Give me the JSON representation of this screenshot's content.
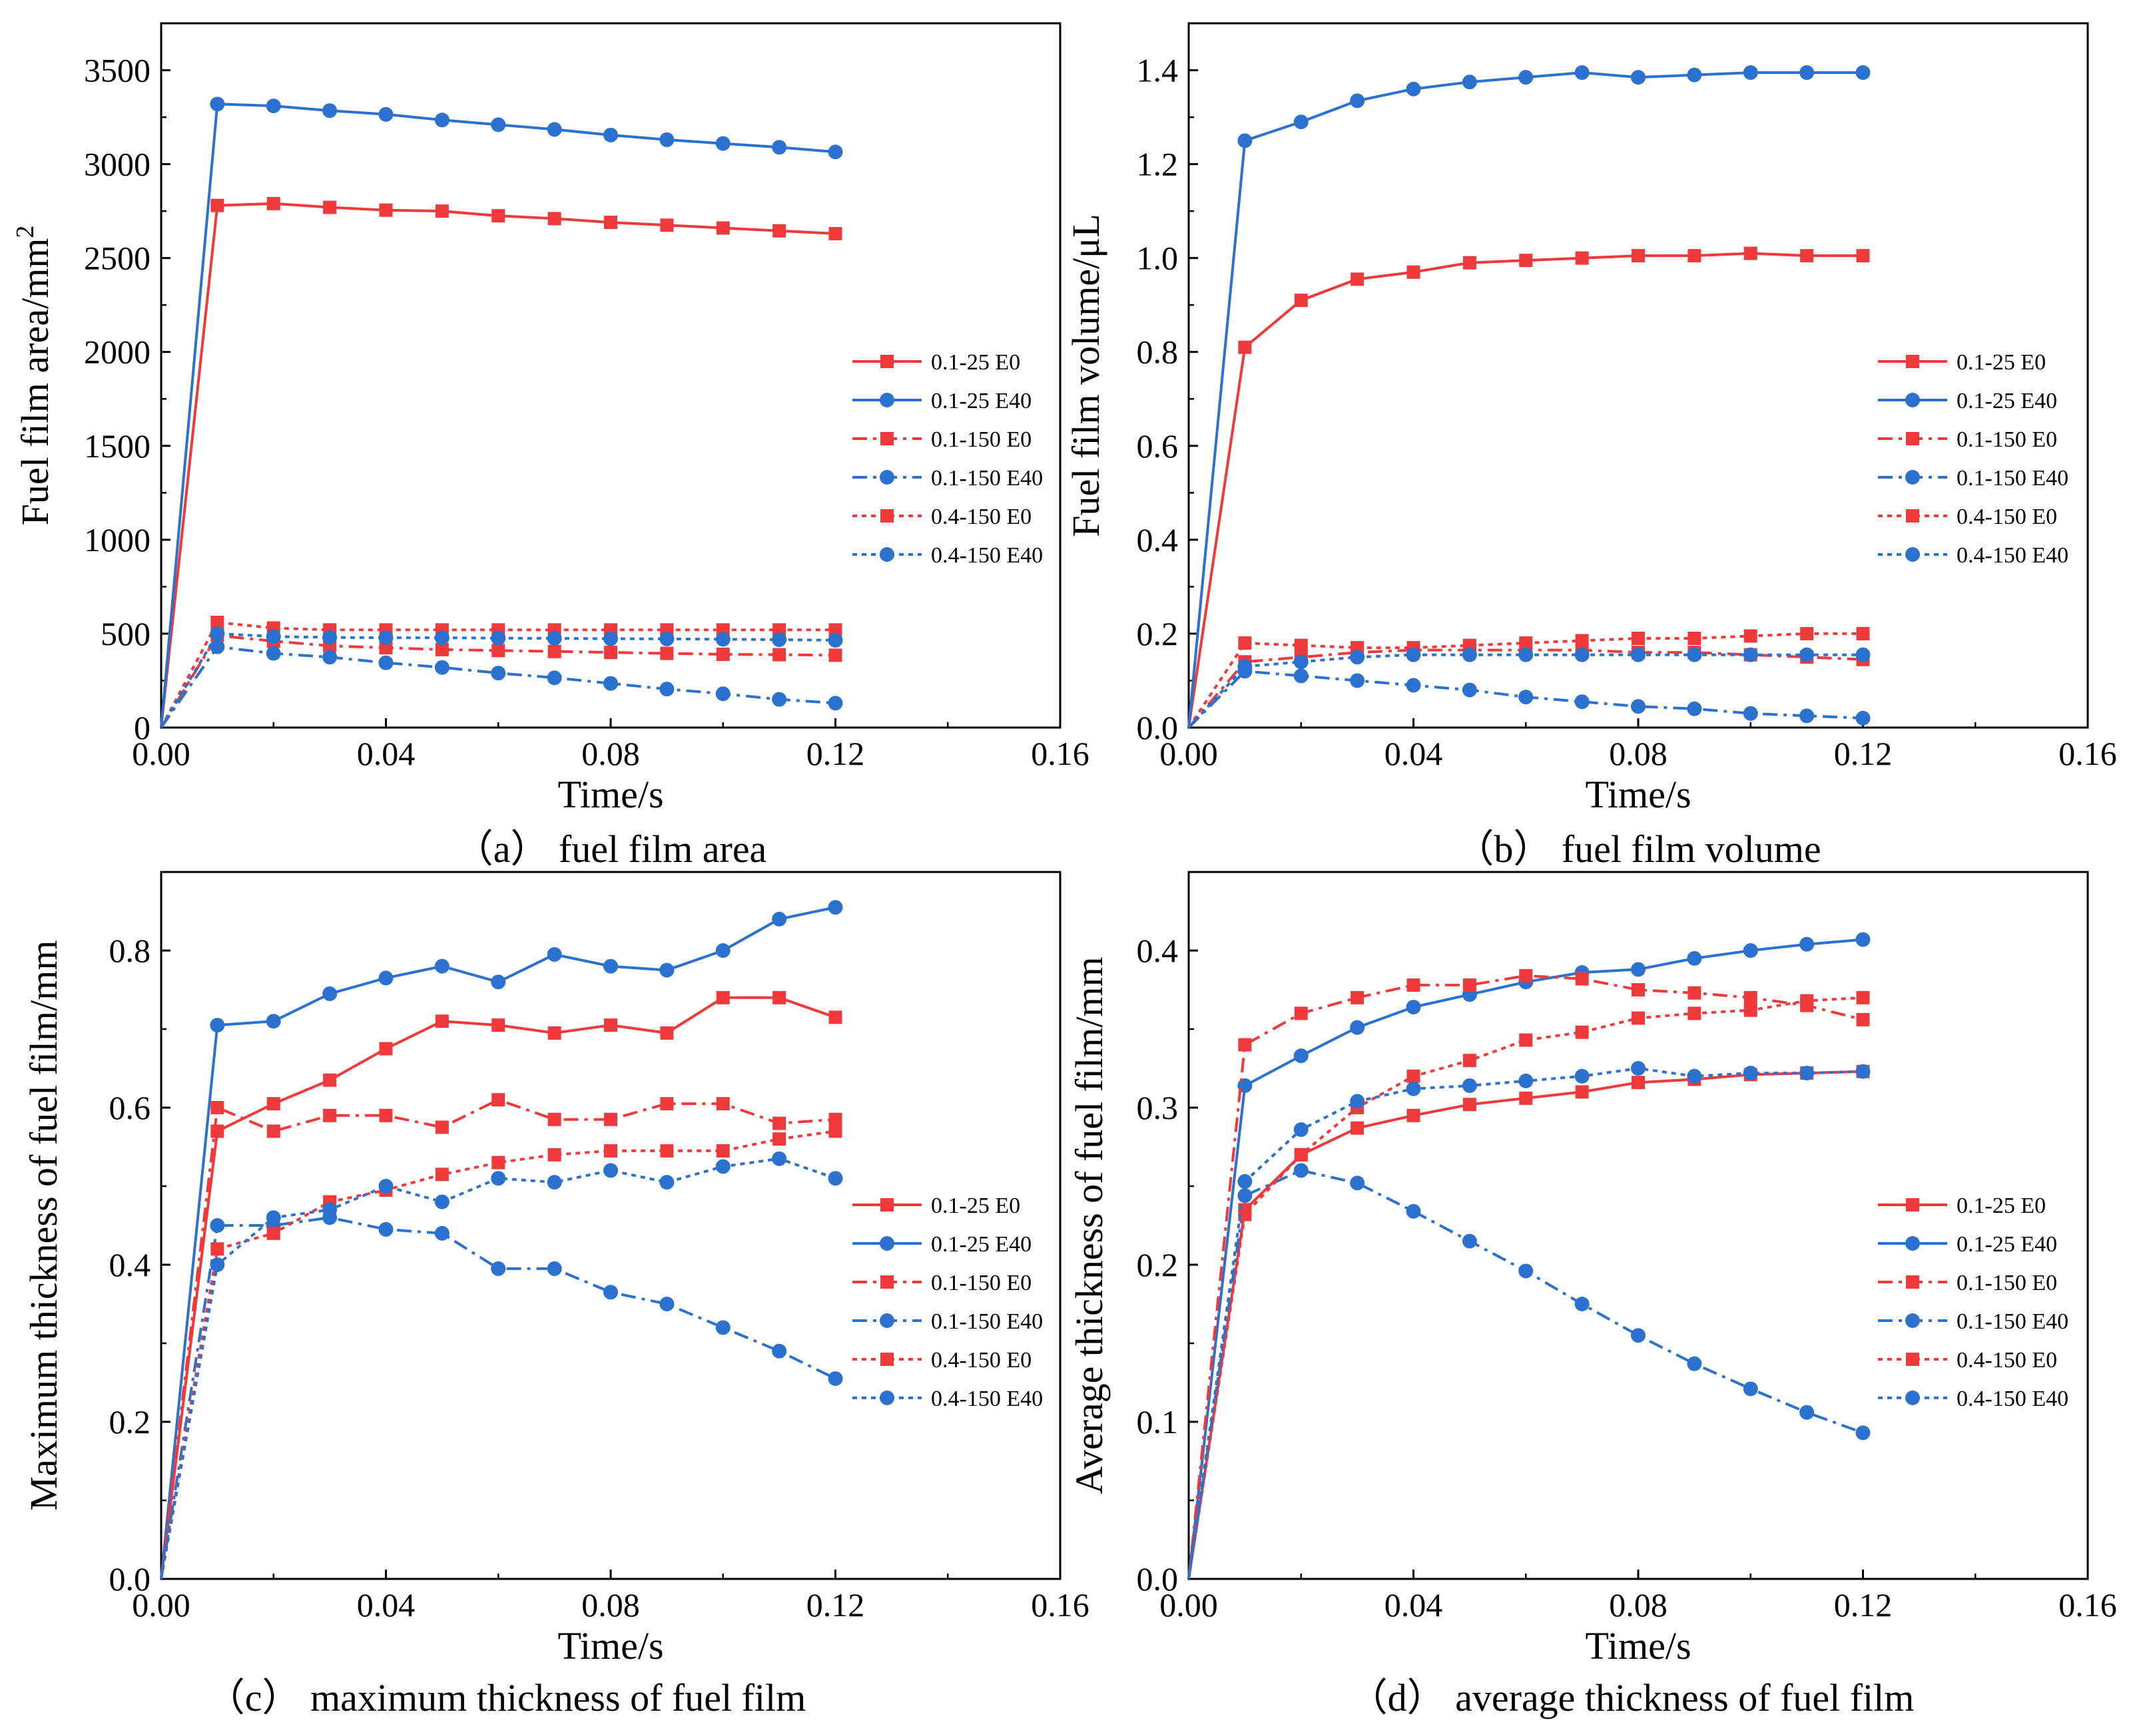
{
  "figure": {
    "series_styles": [
      {
        "name": "0.1-25 E0",
        "color": "#f0393b",
        "marker": "square",
        "dash": "solid"
      },
      {
        "name": "0.1-25 E40",
        "color": "#2a71d0",
        "marker": "circle",
        "dash": "solid"
      },
      {
        "name": "0.1-150 E0",
        "color": "#f0393b",
        "marker": "square",
        "dash": "dashdot"
      },
      {
        "name": "0.1-150 E40",
        "color": "#2a71d0",
        "marker": "circle",
        "dash": "dashdot"
      },
      {
        "name": "0.4-150 E0",
        "color": "#f0393b",
        "marker": "square",
        "dash": "dot"
      },
      {
        "name": "0.4-150 E40",
        "color": "#2a71d0",
        "marker": "circle",
        "dash": "dot"
      }
    ]
  },
  "chart_data": [
    {
      "id": "a",
      "type": "line",
      "caption": "（a） fuel film area",
      "title": "",
      "xlabel": "Time/s",
      "ylabel": "Fuel film area/mm",
      "ylabel_sup": "2",
      "xlim": [
        0,
        0.16
      ],
      "ylim": [
        0,
        3750
      ],
      "xticks": [
        0,
        0.04,
        0.08,
        0.12,
        0.16
      ],
      "xtick_labels": [
        "0.00",
        "0.04",
        "0.08",
        "0.12",
        "0.16"
      ],
      "yticks": [
        0,
        500,
        1000,
        1500,
        2000,
        2500,
        3000,
        3500
      ],
      "ytick_labels": [
        "0",
        "500",
        "1000",
        "1500",
        "2000",
        "2500",
        "3000",
        "3500"
      ],
      "legend_position": "center-right",
      "x": [
        0,
        0.01,
        0.02,
        0.03,
        0.04,
        0.05,
        0.06,
        0.07,
        0.08,
        0.09,
        0.1,
        0.11,
        0.12
      ],
      "series": [
        {
          "name": "0.1-25 E0",
          "values": [
            0,
            2780,
            2790,
            2770,
            2755,
            2750,
            2725,
            2710,
            2690,
            2675,
            2660,
            2645,
            2630
          ]
        },
        {
          "name": "0.1-25 E40",
          "values": [
            0,
            3320,
            3310,
            3285,
            3265,
            3235,
            3210,
            3185,
            3155,
            3130,
            3110,
            3090,
            3065
          ]
        },
        {
          "name": "0.1-150 E0",
          "values": [
            0,
            490,
            460,
            435,
            425,
            415,
            410,
            405,
            400,
            395,
            390,
            388,
            385
          ]
        },
        {
          "name": "0.1-150 E40",
          "values": [
            0,
            430,
            395,
            375,
            345,
            320,
            290,
            265,
            235,
            205,
            180,
            150,
            130
          ]
        },
        {
          "name": "0.4-150 E0",
          "values": [
            0,
            560,
            530,
            520,
            520,
            520,
            520,
            520,
            520,
            520,
            520,
            520,
            520
          ]
        },
        {
          "name": "0.4-150 E40",
          "values": [
            0,
            500,
            485,
            480,
            478,
            478,
            476,
            475,
            473,
            472,
            470,
            468,
            465
          ]
        }
      ]
    },
    {
      "id": "b",
      "type": "line",
      "caption": "（b） fuel film volume",
      "title": "",
      "xlabel": "Time/s",
      "ylabel": "Fuel film volume/μL",
      "ylabel_sup": "",
      "xlim": [
        0,
        0.16
      ],
      "ylim": [
        0,
        1.5
      ],
      "xticks": [
        0,
        0.04,
        0.08,
        0.12,
        0.16
      ],
      "xtick_labels": [
        "0.00",
        "0.04",
        "0.08",
        "0.12",
        "0.16"
      ],
      "yticks": [
        0,
        0.2,
        0.4,
        0.6,
        0.8,
        1.0,
        1.2,
        1.4
      ],
      "ytick_labels": [
        "0.0",
        "0.2",
        "0.4",
        "0.6",
        "0.8",
        "1.0",
        "1.2",
        "1.4"
      ],
      "legend_position": "center-right",
      "x": [
        0,
        0.01,
        0.02,
        0.03,
        0.04,
        0.05,
        0.06,
        0.07,
        0.08,
        0.09,
        0.1,
        0.11,
        0.12
      ],
      "series": [
        {
          "name": "0.1-25 E0",
          "values": [
            0,
            0.81,
            0.91,
            0.955,
            0.97,
            0.99,
            0.995,
            1.0,
            1.005,
            1.005,
            1.01,
            1.005,
            1.005
          ]
        },
        {
          "name": "0.1-25 E40",
          "values": [
            0,
            1.25,
            1.29,
            1.335,
            1.36,
            1.375,
            1.385,
            1.395,
            1.385,
            1.39,
            1.395,
            1.395,
            1.395
          ]
        },
        {
          "name": "0.1-150 E0",
          "values": [
            0,
            0.14,
            0.15,
            0.16,
            0.165,
            0.165,
            0.165,
            0.165,
            0.16,
            0.16,
            0.155,
            0.15,
            0.145
          ]
        },
        {
          "name": "0.1-150 E40",
          "values": [
            0,
            0.12,
            0.11,
            0.1,
            0.09,
            0.08,
            0.065,
            0.055,
            0.045,
            0.04,
            0.03,
            0.025,
            0.02
          ]
        },
        {
          "name": "0.4-150 E0",
          "values": [
            0,
            0.18,
            0.175,
            0.17,
            0.17,
            0.175,
            0.18,
            0.185,
            0.19,
            0.19,
            0.195,
            0.2,
            0.2
          ]
        },
        {
          "name": "0.4-150 E40",
          "values": [
            0,
            0.13,
            0.14,
            0.15,
            0.155,
            0.155,
            0.155,
            0.155,
            0.155,
            0.155,
            0.155,
            0.155,
            0.155
          ]
        }
      ]
    },
    {
      "id": "c",
      "type": "line",
      "caption": "（c） maximum thickness of fuel film",
      "title": "",
      "xlabel": "Time/s",
      "ylabel": "Maximum thickness of fuel film/mm",
      "ylabel_sup": "",
      "xlim": [
        0,
        0.16
      ],
      "ylim": [
        0,
        0.9
      ],
      "xticks": [
        0,
        0.04,
        0.08,
        0.12,
        0.16
      ],
      "xtick_labels": [
        "0.00",
        "0.04",
        "0.08",
        "0.12",
        "0.16"
      ],
      "yticks": [
        0,
        0.2,
        0.4,
        0.6,
        0.8
      ],
      "ytick_labels": [
        "0.0",
        "0.2",
        "0.4",
        "0.6",
        "0.8"
      ],
      "legend_position": "center-right",
      "x": [
        0,
        0.01,
        0.02,
        0.03,
        0.04,
        0.05,
        0.06,
        0.07,
        0.08,
        0.09,
        0.1,
        0.11,
        0.12
      ],
      "series": [
        {
          "name": "0.1-25 E0",
          "values": [
            0,
            0.57,
            0.605,
            0.635,
            0.675,
            0.71,
            0.705,
            0.695,
            0.705,
            0.695,
            0.74,
            0.74,
            0.715
          ]
        },
        {
          "name": "0.1-25 E40",
          "values": [
            0,
            0.705,
            0.71,
            0.745,
            0.765,
            0.78,
            0.76,
            0.795,
            0.78,
            0.775,
            0.8,
            0.84,
            0.855
          ]
        },
        {
          "name": "0.1-150 E0",
          "values": [
            0,
            0.6,
            0.57,
            0.59,
            0.59,
            0.575,
            0.61,
            0.585,
            0.585,
            0.605,
            0.605,
            0.58,
            0.585
          ]
        },
        {
          "name": "0.1-150 E40",
          "values": [
            0,
            0.45,
            0.45,
            0.46,
            0.445,
            0.44,
            0.395,
            0.395,
            0.365,
            0.35,
            0.32,
            0.29,
            0.255
          ]
        },
        {
          "name": "0.4-150 E0",
          "values": [
            0,
            0.42,
            0.44,
            0.48,
            0.495,
            0.515,
            0.53,
            0.54,
            0.545,
            0.545,
            0.545,
            0.56,
            0.57
          ]
        },
        {
          "name": "0.4-150 E40",
          "values": [
            0,
            0.4,
            0.46,
            0.47,
            0.5,
            0.48,
            0.51,
            0.505,
            0.52,
            0.505,
            0.525,
            0.535,
            0.51
          ]
        }
      ]
    },
    {
      "id": "d",
      "type": "line",
      "caption": "（d） average thickness of fuel film",
      "title": "",
      "xlabel": "Time/s",
      "ylabel": "Average thickness of fuel film/mm",
      "ylabel_sup": "",
      "xlim": [
        0,
        0.16
      ],
      "ylim": [
        0,
        0.45
      ],
      "xticks": [
        0,
        0.04,
        0.08,
        0.12,
        0.16
      ],
      "xtick_labels": [
        "0.00",
        "0.04",
        "0.08",
        "0.12",
        "0.16"
      ],
      "yticks": [
        0,
        0.1,
        0.2,
        0.3,
        0.4
      ],
      "ytick_labels": [
        "0.0",
        "0.1",
        "0.2",
        "0.3",
        "0.4"
      ],
      "legend_position": "center-right",
      "x": [
        0,
        0.01,
        0.02,
        0.03,
        0.04,
        0.05,
        0.06,
        0.07,
        0.08,
        0.09,
        0.1,
        0.11,
        0.12
      ],
      "series": [
        {
          "name": "0.1-25 E0",
          "values": [
            0,
            0.235,
            0.27,
            0.287,
            0.295,
            0.302,
            0.306,
            0.31,
            0.316,
            0.318,
            0.321,
            0.322,
            0.323
          ]
        },
        {
          "name": "0.1-25 E40",
          "values": [
            0,
            0.314,
            0.333,
            0.351,
            0.364,
            0.372,
            0.38,
            0.386,
            0.388,
            0.395,
            0.4,
            0.404,
            0.407
          ]
        },
        {
          "name": "0.1-150 E0",
          "values": [
            0,
            0.34,
            0.36,
            0.37,
            0.378,
            0.378,
            0.384,
            0.382,
            0.375,
            0.373,
            0.37,
            0.365,
            0.356
          ]
        },
        {
          "name": "0.1-150 E40",
          "values": [
            0,
            0.244,
            0.26,
            0.252,
            0.234,
            0.215,
            0.196,
            0.175,
            0.155,
            0.137,
            0.121,
            0.106,
            0.093
          ]
        },
        {
          "name": "0.4-150 E0",
          "values": [
            0,
            0.232,
            0.27,
            0.3,
            0.32,
            0.33,
            0.343,
            0.348,
            0.357,
            0.36,
            0.362,
            0.368,
            0.37
          ]
        },
        {
          "name": "0.4-150 E40",
          "values": [
            0,
            0.253,
            0.286,
            0.304,
            0.312,
            0.314,
            0.317,
            0.32,
            0.325,
            0.32,
            0.322,
            0.322,
            0.323
          ]
        }
      ]
    }
  ]
}
